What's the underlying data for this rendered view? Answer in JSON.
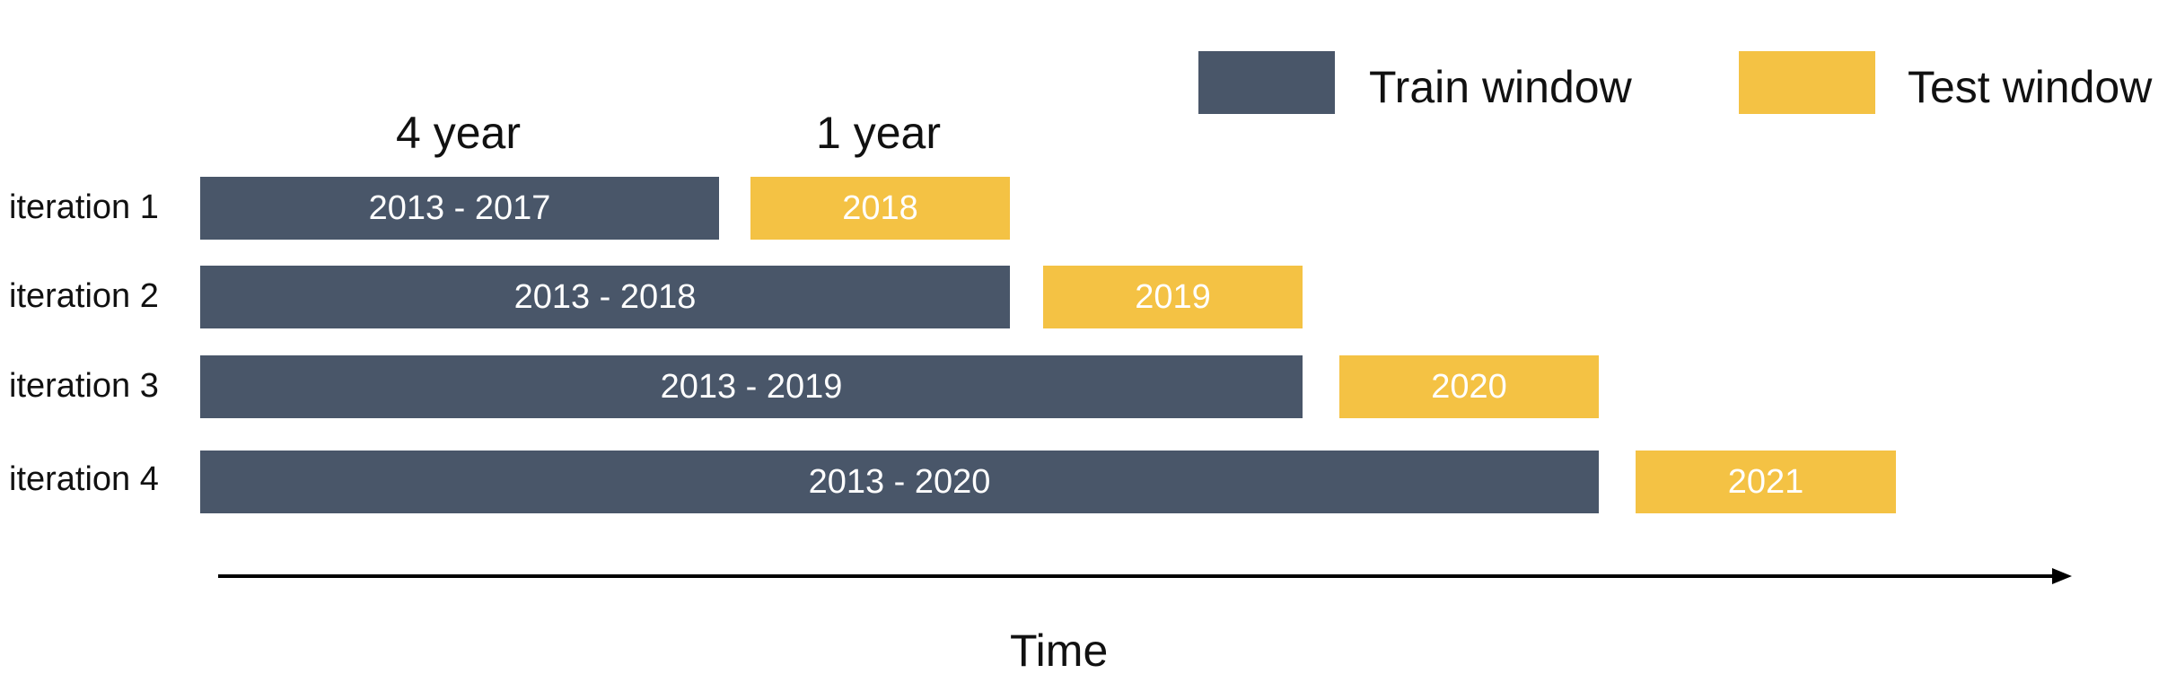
{
  "legend": {
    "train": {
      "label": "Train window",
      "color": "#495669"
    },
    "test": {
      "label": "Test window",
      "color": "#f4c244"
    }
  },
  "span_labels": {
    "train": "4 year",
    "test": "1 year"
  },
  "iterations": [
    {
      "label": "iteration 1",
      "train": "2013 - 2017",
      "test": "2018"
    },
    {
      "label": "iteration 2",
      "train": "2013 - 2018",
      "test": "2019"
    },
    {
      "label": "iteration 3",
      "train": "2013 - 2019",
      "test": "2020"
    },
    {
      "label": "iteration 4",
      "train": "2013 - 2020",
      "test": "2021"
    }
  ],
  "axis": {
    "label": "Time"
  }
}
